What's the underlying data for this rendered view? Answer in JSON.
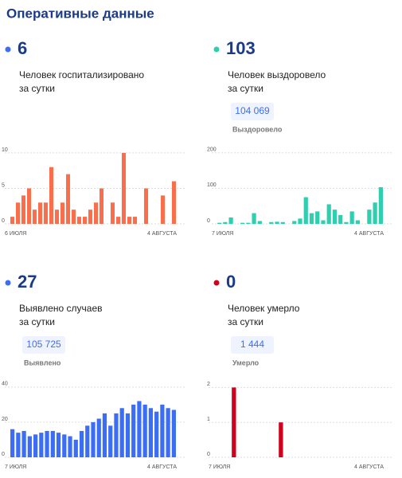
{
  "title": "Оперативные данные",
  "panels": [
    {
      "number": 6,
      "color": "#3b6ef5",
      "label": [
        "Человек госпитализировано",
        "за сутки"
      ]
    },
    {
      "number": 103,
      "color": "#2ecfae",
      "label": [
        "Человек выздоровело",
        "за сутки"
      ],
      "total": "104 069",
      "total_label": "Выздоровело"
    },
    {
      "number": 27,
      "color": "#3b6ef5",
      "label": [
        "Выявлено случаев",
        "за сутки"
      ],
      "total": "105 725",
      "total_label": "Выявлено"
    },
    {
      "number": 0,
      "color": "#d0021b",
      "label": [
        "Человек умерло",
        "за сутки"
      ],
      "total": "1 444",
      "total_label": "Умерло"
    }
  ],
  "chart_data": [
    {
      "type": "bar",
      "color": "#fa6e4b",
      "ylim": [
        0,
        11
      ],
      "yticks": [
        0,
        5,
        10
      ],
      "grid": true,
      "categories": [
        "6 ИЮЛЯ",
        null,
        null,
        null,
        null,
        null,
        null,
        null,
        null,
        null,
        null,
        null,
        null,
        null,
        null,
        null,
        null,
        null,
        null,
        null,
        null,
        null,
        null,
        null,
        null,
        null,
        null,
        null,
        null,
        "4 АВГУСТА"
      ],
      "values": [
        1,
        3,
        4,
        5,
        2,
        3,
        3,
        8,
        2,
        3,
        7,
        2,
        1,
        1,
        2,
        3,
        5,
        0,
        3,
        1,
        10,
        1,
        1,
        0,
        5,
        0,
        0,
        4,
        0,
        6
      ]
    },
    {
      "type": "bar",
      "color": "#2ecfae",
      "ylim": [
        0,
        215
      ],
      "yticks": [
        0,
        100,
        200
      ],
      "grid": true,
      "categories": [
        "7 ИЮЛЯ",
        null,
        null,
        null,
        null,
        null,
        null,
        null,
        null,
        null,
        null,
        null,
        null,
        null,
        null,
        null,
        null,
        null,
        null,
        null,
        null,
        null,
        null,
        null,
        null,
        null,
        null,
        null,
        "4 АВГУСТА"
      ],
      "values": [
        3,
        5,
        18,
        0,
        3,
        3,
        30,
        8,
        0,
        5,
        6,
        5,
        0,
        8,
        15,
        75,
        30,
        35,
        10,
        55,
        40,
        25,
        5,
        35,
        10,
        0,
        40,
        60,
        103
      ]
    },
    {
      "type": "bar",
      "color": "#3b6ef5",
      "ylim": [
        0,
        44
      ],
      "yticks": [
        0,
        20,
        40
      ],
      "grid": true,
      "categories": [
        "7 ИЮЛЯ",
        null,
        null,
        null,
        null,
        null,
        null,
        null,
        null,
        null,
        null,
        null,
        null,
        null,
        null,
        null,
        null,
        null,
        null,
        null,
        null,
        null,
        null,
        null,
        null,
        null,
        null,
        null,
        "4 АВГУСТА"
      ],
      "values": [
        16,
        14,
        15,
        12,
        13,
        14,
        15,
        15,
        14,
        13,
        12,
        10,
        15,
        18,
        20,
        22,
        25,
        18,
        25,
        28,
        25,
        30,
        32,
        30,
        28,
        26,
        30,
        28,
        27
      ]
    },
    {
      "type": "bar",
      "color": "#d0021b",
      "ylim": [
        0,
        2.1
      ],
      "yticks": [
        0,
        1,
        2
      ],
      "grid": true,
      "categories": [
        "7 ИЮЛЯ",
        null,
        null,
        null,
        null,
        null,
        null,
        null,
        null,
        null,
        null,
        null,
        null,
        null,
        null,
        null,
        null,
        null,
        null,
        null,
        null,
        null,
        null,
        null,
        null,
        null,
        null,
        null,
        "4 АВГУСТА"
      ],
      "values": [
        0,
        0,
        0,
        2,
        0,
        0,
        0,
        0,
        0,
        0,
        0,
        1,
        0,
        0,
        0,
        0,
        0,
        0,
        0,
        0,
        0,
        0,
        0,
        0,
        0,
        0,
        0,
        0,
        0
      ]
    }
  ]
}
